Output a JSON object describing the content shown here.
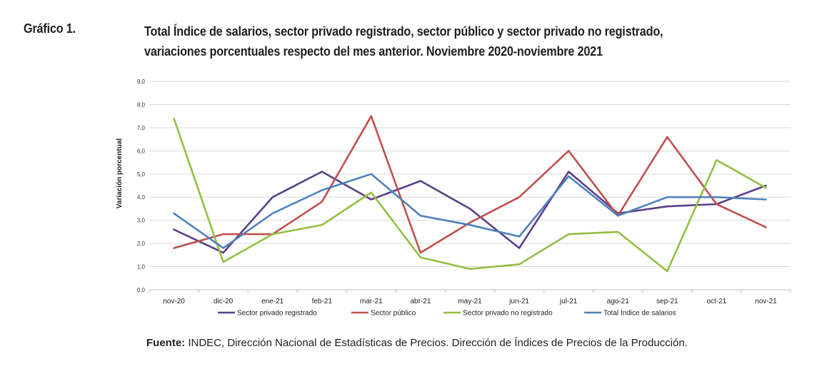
{
  "header": {
    "figure_label": "Gráfico 1.",
    "title_line1": "Total Índice de salarios, sector privado registrado, sector público y sector privado no registrado,",
    "title_line2": "variaciones porcentuales respecto del mes anterior. Noviembre 2020-noviembre 2021"
  },
  "source": {
    "label": "Fuente:",
    "text": " INDEC, Dirección Nacional de Estadísticas de Precios. Dirección de Índices de Precios de la Producción."
  },
  "chart_data": {
    "type": "line",
    "ylabel": "Variación porcentual",
    "xlabel": "",
    "ylim": [
      0,
      9
    ],
    "ytick_labels": [
      "0,0",
      "1,0",
      "2,0",
      "3,0",
      "4,0",
      "5,0",
      "6,0",
      "7,0",
      "8,0",
      "9,0"
    ],
    "grid": true,
    "legend_position": "bottom",
    "categories": [
      "nov-20",
      "dic-20",
      "ene-21",
      "feb-21",
      "mar-21",
      "abr-21",
      "may-21",
      "jun-21",
      "jul-21",
      "ago-21",
      "sep-21",
      "oct-21",
      "nov-21"
    ],
    "series": [
      {
        "name": "Sector privado registrado",
        "color": "#5b3f8a",
        "values": [
          2.6,
          1.6,
          4.0,
          5.1,
          3.9,
          4.7,
          3.5,
          1.8,
          5.1,
          3.3,
          3.6,
          3.7,
          4.5
        ]
      },
      {
        "name": "Sector público",
        "color": "#c0504d",
        "values": [
          1.8,
          2.4,
          2.4,
          3.8,
          7.5,
          1.6,
          2.9,
          4.0,
          6.0,
          3.2,
          6.6,
          3.7,
          2.7
        ]
      },
      {
        "name": "Sector privado no registrado",
        "color": "#93bf44",
        "values": [
          7.4,
          1.2,
          2.4,
          2.8,
          4.2,
          1.4,
          0.9,
          1.1,
          2.4,
          2.5,
          0.8,
          5.6,
          4.4
        ]
      },
      {
        "name": "Total Índice de salarios",
        "color": "#4f81bd",
        "values": [
          3.3,
          1.8,
          3.3,
          4.3,
          5.0,
          3.2,
          2.8,
          2.3,
          4.9,
          3.2,
          4.0,
          4.0,
          3.9
        ]
      }
    ]
  }
}
